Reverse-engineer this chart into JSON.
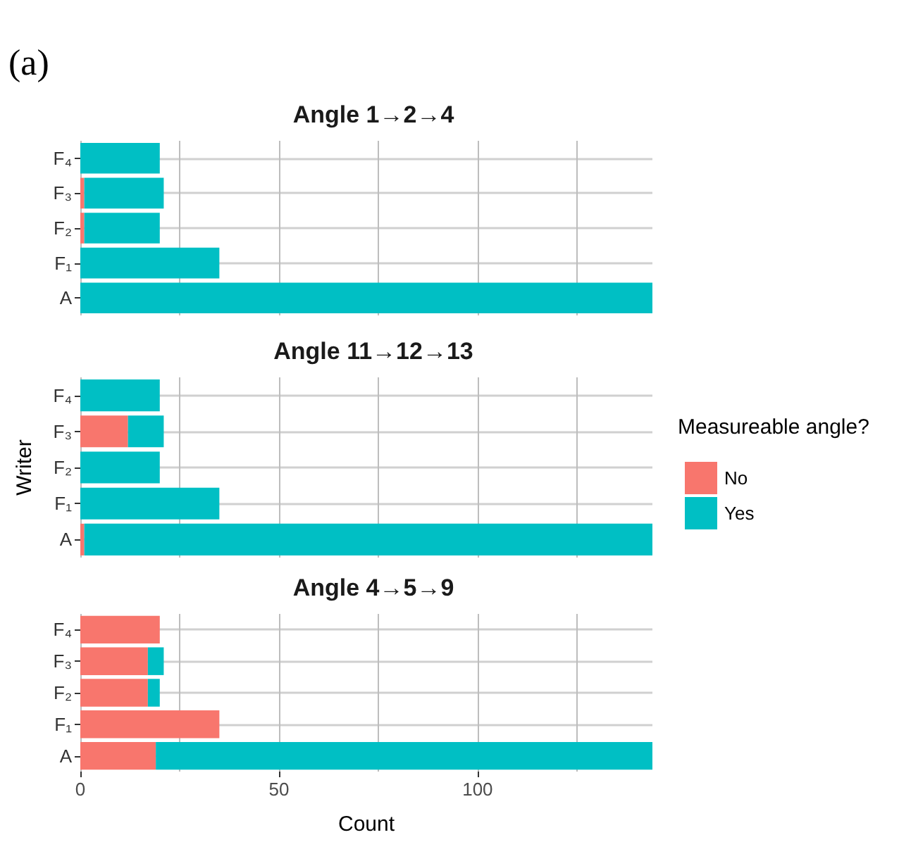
{
  "chart_data": [
    {
      "type": "bar",
      "orientation": "horizontal",
      "stacked": true,
      "title": "Angle 1→2→4",
      "annotations": [
        "(a)"
      ],
      "categories": [
        "F₄",
        "F₃",
        "F₂",
        "F₁",
        "A"
      ],
      "series": [
        {
          "color": "#f8766d",
          "values": [
            0,
            1,
            1,
            0,
            0
          ]
        },
        {
          "color": "#00bfc4",
          "values": [
            20,
            20,
            19,
            35,
            144
          ]
        }
      ],
      "xlim": [
        0,
        144
      ],
      "xticks": [
        0,
        {
          "value": 25,
          "label": null
        },
        50,
        {
          "value": 75,
          "label": null
        },
        100,
        {
          "value": 125,
          "label": null
        }
      ],
      "grid": true,
      "legend": false,
      "tick_labels": "y"
    },
    {
      "type": "bar",
      "orientation": "horizontal",
      "stacked": true,
      "title": "Angle 11→12→13",
      "ylabel": "Writer",
      "legend_title": "Measureable angle?",
      "categories": [
        "F₄",
        "F₃",
        "F₂",
        "F₁",
        "A"
      ],
      "series": [
        {
          "name": "No",
          "color": "#f8766d",
          "values": [
            0,
            12,
            0,
            0,
            1
          ]
        },
        {
          "name": "Yes",
          "color": "#00bfc4",
          "values": [
            20,
            9,
            20,
            35,
            143
          ]
        }
      ],
      "xlim": [
        0,
        144
      ],
      "xticks": [
        0,
        {
          "value": 25,
          "label": null
        },
        50,
        {
          "value": 75,
          "label": null
        },
        100,
        {
          "value": 125,
          "label": null
        }
      ],
      "grid": true,
      "legend": "right",
      "tick_labels": "y"
    },
    {
      "type": "bar",
      "orientation": "horizontal",
      "stacked": true,
      "title": "Angle 4→5→9",
      "xlabel": "Count",
      "categories": [
        "F₄",
        "F₃",
        "F₂",
        "F₁",
        "A"
      ],
      "series": [
        {
          "color": "#f8766d",
          "values": [
            20,
            17,
            17,
            35,
            19
          ]
        },
        {
          "color": "#00bfc4",
          "values": [
            0,
            4,
            3,
            0,
            125
          ]
        }
      ],
      "xlim": [
        0,
        144
      ],
      "xticks": [
        0,
        {
          "value": 25,
          "label": null
        },
        50,
        {
          "value": 75,
          "label": null
        },
        100,
        {
          "value": 125,
          "label": null
        }
      ],
      "grid": true,
      "legend": false
    }
  ]
}
